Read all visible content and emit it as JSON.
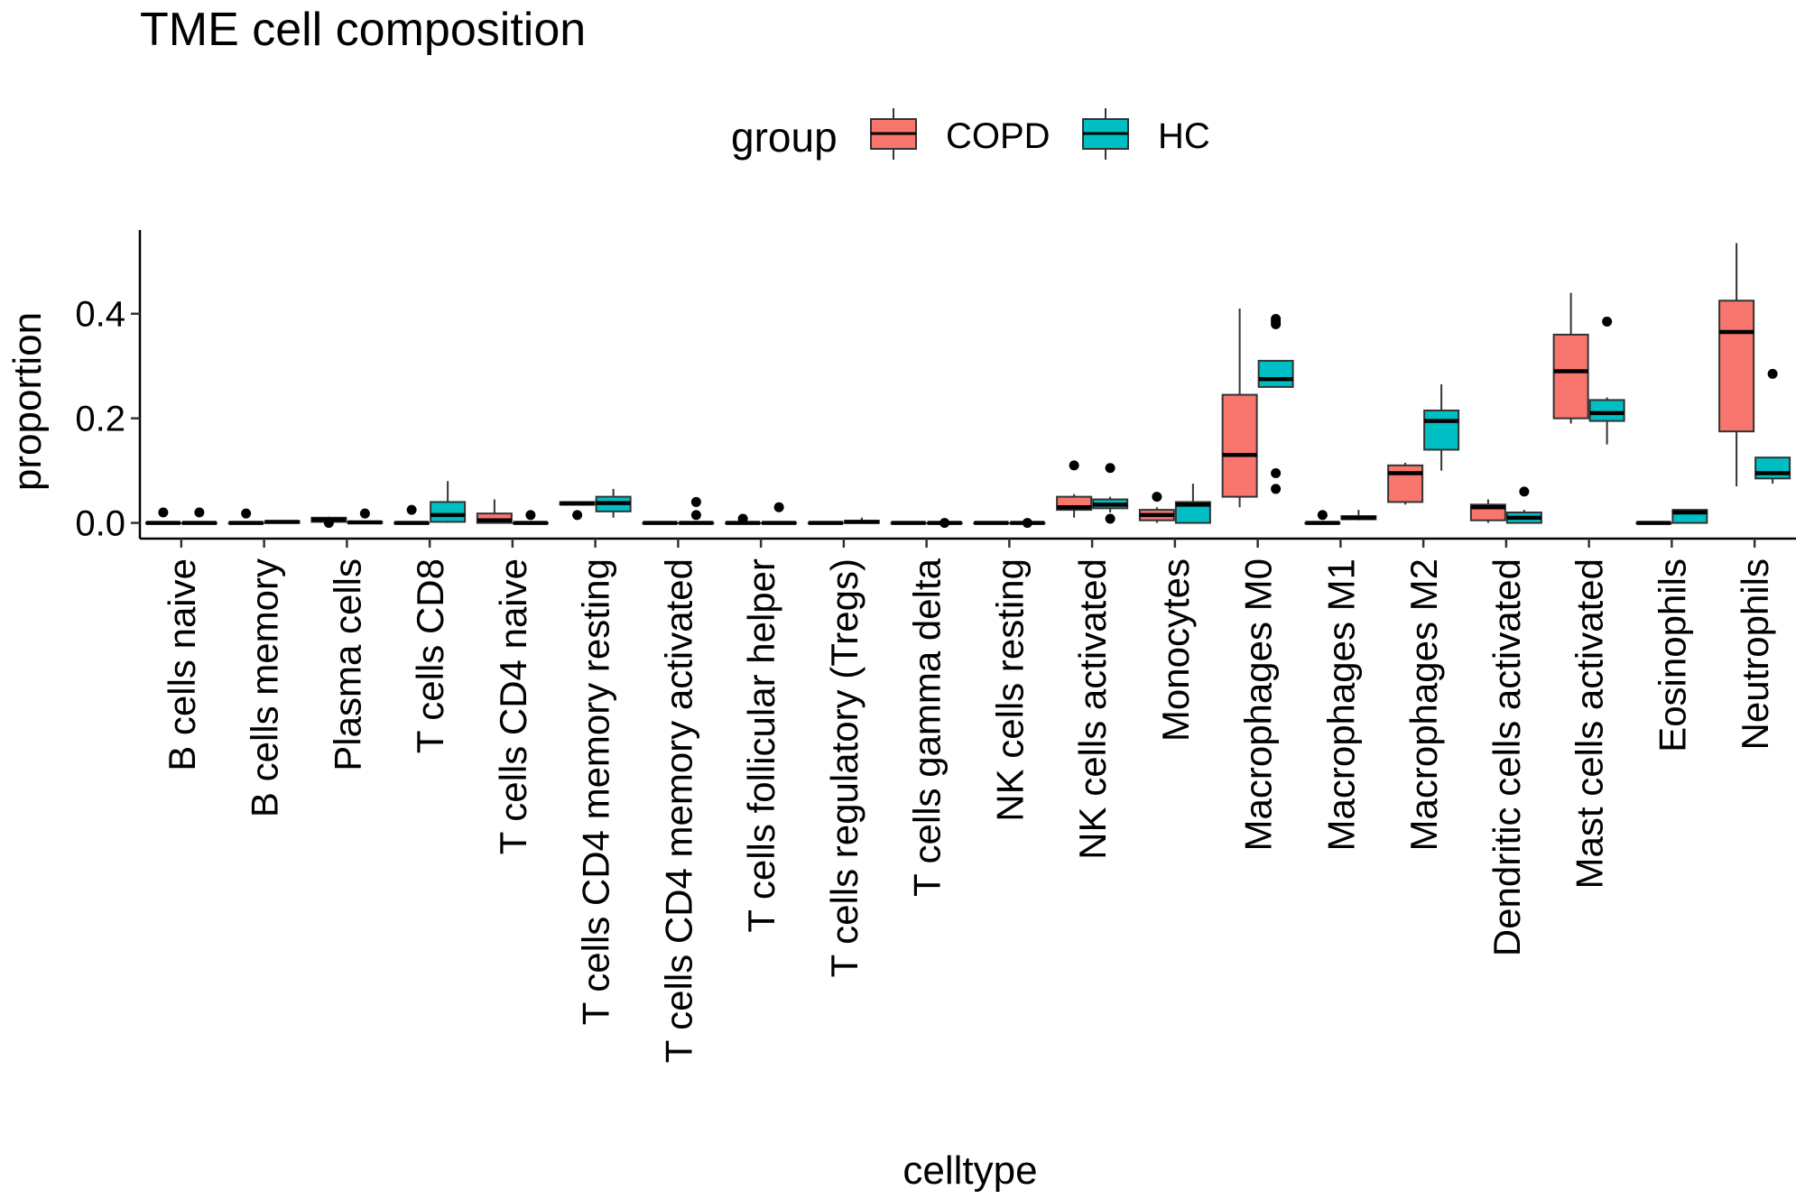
{
  "chart_data": {
    "type": "boxplot",
    "title": "TME cell composition",
    "xlabel": "celltype",
    "ylabel": "proportion",
    "ylim": [
      -0.03,
      0.56
    ],
    "yticks": [
      0.0,
      0.2,
      0.4
    ],
    "ytick_labels": [
      "0.0",
      "0.2",
      "0.4"
    ],
    "legend": {
      "title": "group",
      "position": "top",
      "entries": [
        {
          "name": "COPD",
          "color": "#F8766D"
        },
        {
          "name": "HC",
          "color": "#00BFC4"
        }
      ]
    },
    "categories": [
      "B cells naive",
      "B cells memory",
      "Plasma cells",
      "T cells CD8",
      "T cells CD4 naive",
      "T cells CD4 memory resting",
      "T cells CD4 memory activated",
      "T cells follicular helper",
      "T cells regulatory (Tregs)",
      "T cells gamma delta",
      "NK cells resting",
      "NK cells activated",
      "Monocytes",
      "Macrophages M0",
      "Macrophages M1",
      "Macrophages M2",
      "Dendritic cells activated",
      "Mast cells activated",
      "Eosinophils",
      "Neutrophils"
    ],
    "series": [
      {
        "name": "COPD",
        "color": "#F8766D",
        "boxes": [
          {
            "min": 0.0,
            "q1": 0.0,
            "median": 0.0,
            "q3": 0.0,
            "max": 0.0,
            "outliers": [
              0.02
            ]
          },
          {
            "min": 0.0,
            "q1": 0.0,
            "median": 0.0,
            "q3": 0.0,
            "max": 0.0,
            "outliers": [
              0.018
            ]
          },
          {
            "min": 0.0,
            "q1": 0.002,
            "median": 0.006,
            "q3": 0.01,
            "max": 0.012,
            "outliers": [
              0.0
            ]
          },
          {
            "min": 0.0,
            "q1": 0.0,
            "median": 0.0,
            "q3": 0.0,
            "max": 0.0,
            "outliers": [
              0.025
            ]
          },
          {
            "min": 0.0,
            "q1": 0.0,
            "median": 0.005,
            "q3": 0.018,
            "max": 0.045,
            "outliers": []
          },
          {
            "min": 0.035,
            "q1": 0.035,
            "median": 0.037,
            "q3": 0.04,
            "max": 0.04,
            "outliers": [
              0.015
            ]
          },
          {
            "min": 0.0,
            "q1": 0.0,
            "median": 0.0,
            "q3": 0.0,
            "max": 0.0,
            "outliers": []
          },
          {
            "min": 0.0,
            "q1": 0.0,
            "median": 0.0,
            "q3": 0.0,
            "max": 0.0,
            "outliers": [
              0.008
            ]
          },
          {
            "min": 0.0,
            "q1": 0.0,
            "median": 0.0,
            "q3": 0.0,
            "max": 0.0,
            "outliers": []
          },
          {
            "min": 0.0,
            "q1": 0.0,
            "median": 0.0,
            "q3": 0.0,
            "max": 0.0,
            "outliers": []
          },
          {
            "min": 0.0,
            "q1": 0.0,
            "median": 0.0,
            "q3": 0.0,
            "max": 0.0,
            "outliers": []
          },
          {
            "min": 0.01,
            "q1": 0.025,
            "median": 0.03,
            "q3": 0.05,
            "max": 0.055,
            "outliers": [
              0.11
            ]
          },
          {
            "min": 0.0,
            "q1": 0.005,
            "median": 0.015,
            "q3": 0.025,
            "max": 0.03,
            "outliers": [
              0.05
            ]
          },
          {
            "min": 0.03,
            "q1": 0.05,
            "median": 0.13,
            "q3": 0.245,
            "max": 0.41,
            "outliers": []
          },
          {
            "min": 0.0,
            "q1": 0.0,
            "median": 0.0,
            "q3": 0.0,
            "max": 0.0,
            "outliers": [
              0.015
            ]
          },
          {
            "min": 0.035,
            "q1": 0.04,
            "median": 0.095,
            "q3": 0.11,
            "max": 0.115,
            "outliers": []
          },
          {
            "min": 0.0,
            "q1": 0.005,
            "median": 0.03,
            "q3": 0.035,
            "max": 0.045,
            "outliers": []
          },
          {
            "min": 0.19,
            "q1": 0.2,
            "median": 0.29,
            "q3": 0.36,
            "max": 0.44,
            "outliers": []
          },
          {
            "min": 0.0,
            "q1": 0.0,
            "median": 0.0,
            "q3": 0.0,
            "max": 0.0,
            "outliers": []
          },
          {
            "min": 0.07,
            "q1": 0.175,
            "median": 0.365,
            "q3": 0.425,
            "max": 0.535,
            "outliers": []
          }
        ]
      },
      {
        "name": "HC",
        "color": "#00BFC4",
        "boxes": [
          {
            "min": 0.0,
            "q1": 0.0,
            "median": 0.0,
            "q3": 0.0,
            "max": 0.0,
            "outliers": [
              0.02
            ]
          },
          {
            "min": 0.0,
            "q1": 0.0,
            "median": 0.002,
            "q3": 0.003,
            "max": 0.004,
            "outliers": []
          },
          {
            "min": 0.0,
            "q1": 0.0,
            "median": 0.001,
            "q3": 0.002,
            "max": 0.004,
            "outliers": [
              0.018
            ]
          },
          {
            "min": 0.0,
            "q1": 0.002,
            "median": 0.015,
            "q3": 0.04,
            "max": 0.08,
            "outliers": []
          },
          {
            "min": 0.0,
            "q1": 0.0,
            "median": 0.0,
            "q3": 0.0,
            "max": 0.0,
            "outliers": [
              0.015
            ]
          },
          {
            "min": 0.01,
            "q1": 0.022,
            "median": 0.038,
            "q3": 0.05,
            "max": 0.065,
            "outliers": []
          },
          {
            "min": 0.0,
            "q1": 0.0,
            "median": 0.0,
            "q3": 0.0,
            "max": 0.0,
            "outliers": [
              0.04,
              0.015
            ]
          },
          {
            "min": 0.0,
            "q1": 0.0,
            "median": 0.0,
            "q3": 0.0,
            "max": 0.0,
            "outliers": [
              0.03
            ]
          },
          {
            "min": 0.0,
            "q1": 0.0,
            "median": 0.002,
            "q3": 0.004,
            "max": 0.01,
            "outliers": []
          },
          {
            "min": 0.0,
            "q1": 0.0,
            "median": 0.0,
            "q3": 0.0,
            "max": 0.0,
            "outliers": [
              0.0
            ]
          },
          {
            "min": 0.0,
            "q1": 0.0,
            "median": 0.0,
            "q3": 0.0,
            "max": 0.0,
            "outliers": [
              0.0
            ]
          },
          {
            "min": 0.02,
            "q1": 0.028,
            "median": 0.035,
            "q3": 0.045,
            "max": 0.05,
            "outliers": [
              0.105,
              0.008
            ]
          },
          {
            "min": 0.0,
            "q1": 0.0,
            "median": 0.035,
            "q3": 0.04,
            "max": 0.075,
            "outliers": []
          },
          {
            "min": 0.26,
            "q1": 0.26,
            "median": 0.275,
            "q3": 0.31,
            "max": 0.31,
            "outliers": [
              0.39,
              0.385,
              0.38,
              0.095,
              0.065
            ]
          },
          {
            "min": 0.005,
            "q1": 0.007,
            "median": 0.01,
            "q3": 0.013,
            "max": 0.025,
            "outliers": []
          },
          {
            "min": 0.1,
            "q1": 0.14,
            "median": 0.195,
            "q3": 0.215,
            "max": 0.265,
            "outliers": []
          },
          {
            "min": 0.0,
            "q1": 0.0,
            "median": 0.01,
            "q3": 0.02,
            "max": 0.025,
            "outliers": [
              0.06
            ]
          },
          {
            "min": 0.15,
            "q1": 0.195,
            "median": 0.21,
            "q3": 0.235,
            "max": 0.24,
            "outliers": [
              0.385
            ]
          },
          {
            "min": 0.0,
            "q1": 0.0,
            "median": 0.02,
            "q3": 0.025,
            "max": 0.025,
            "outliers": []
          },
          {
            "min": 0.075,
            "q1": 0.085,
            "median": 0.095,
            "q3": 0.125,
            "max": 0.125,
            "outliers": [
              0.285
            ]
          }
        ]
      }
    ]
  }
}
